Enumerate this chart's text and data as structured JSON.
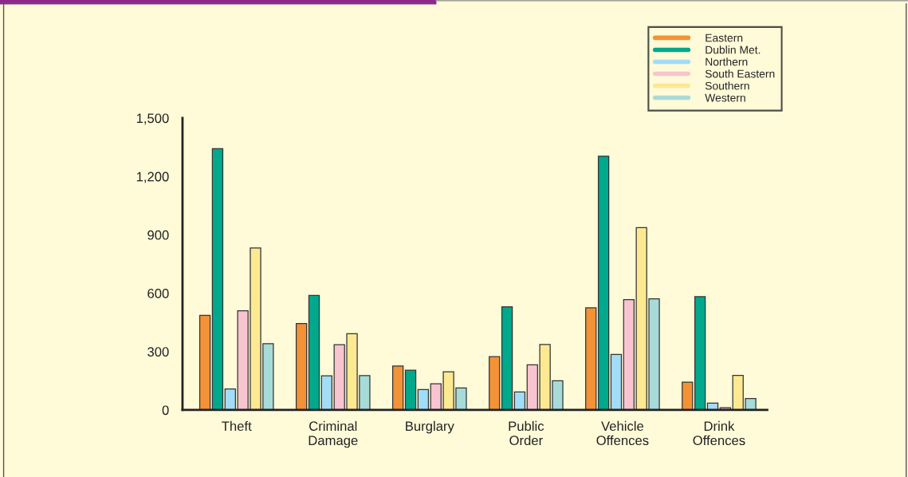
{
  "chart_data": {
    "type": "bar",
    "categories": [
      "Theft",
      "Criminal\nDamage",
      "Burglary",
      "Public\nOrder",
      "Vehicle\nOffences",
      "Drink\nOffences"
    ],
    "series": [
      {
        "name": "Eastern",
        "color": "#f39237",
        "values": [
          486,
          444,
          226,
          274,
          525,
          143
        ]
      },
      {
        "name": "Dublin Met.",
        "color": "#00a88c",
        "values": [
          1343,
          589,
          204,
          530,
          1304,
          582
        ]
      },
      {
        "name": "Northern",
        "color": "#a3dcf7",
        "values": [
          108,
          176,
          105,
          93,
          285,
          35
        ]
      },
      {
        "name": "South Eastern",
        "color": "#f7c4cf",
        "values": [
          510,
          335,
          135,
          232,
          567,
          12
        ]
      },
      {
        "name": "Southern",
        "color": "#fde992",
        "values": [
          832,
          392,
          196,
          337,
          937,
          178
        ]
      },
      {
        "name": "Western",
        "color": "#a7dbd8",
        "values": [
          341,
          177,
          113,
          150,
          571,
          59
        ]
      }
    ],
    "ylim": [
      0,
      1500
    ],
    "yticks": [
      0,
      300,
      600,
      900,
      {
        "value": 1200,
        "label": "1,200"
      },
      {
        "value": 1500,
        "label": "1,500"
      }
    ],
    "grid": false,
    "legend": "top right"
  }
}
